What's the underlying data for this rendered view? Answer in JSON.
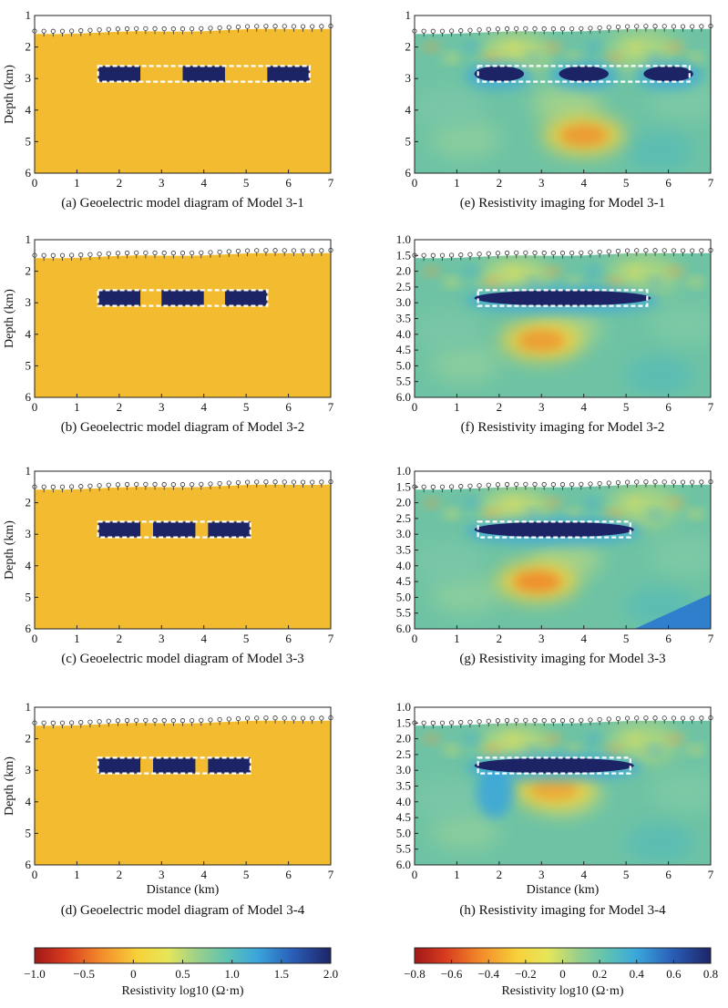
{
  "chart_data": [
    {
      "type": "heatmap",
      "kind": "model",
      "caption": "(a) Geoelectric model diagram of Model 3-1",
      "ylabel": "Depth (km)",
      "xlabel": "",
      "x_ticks": [
        "0",
        "1",
        "2",
        "3",
        "4",
        "5",
        "6",
        "7"
      ],
      "y_ticks": [
        "1",
        "2",
        "3",
        "4",
        "5",
        "6"
      ],
      "xlim": [
        0,
        7
      ],
      "ylim": [
        1,
        6
      ],
      "background_log10_resistivity": 0.3,
      "anomaly_log10_resistivity": 2.0,
      "blocks_km": [
        [
          1.5,
          2.5
        ],
        [
          3.5,
          4.5
        ],
        [
          5.5,
          6.5
        ]
      ],
      "anomaly_top_km": 2.6,
      "anomaly_bottom_km": 3.1,
      "outline_km": [
        1.5,
        6.5
      ]
    },
    {
      "type": "heatmap",
      "kind": "inversion",
      "caption": "(e) Resistivity imaging for Model 3-1",
      "ylabel": "",
      "xlabel": "",
      "x_ticks": [
        "0",
        "1",
        "2",
        "3",
        "4",
        "5",
        "6",
        "7"
      ],
      "y_ticks": [
        "1",
        "2",
        "3",
        "4",
        "5",
        "6"
      ],
      "xlim": [
        0,
        7
      ],
      "ylim": [
        1,
        6
      ],
      "outline_km": [
        1.5,
        6.5
      ],
      "low_zones_km": [
        [
          1.5,
          2.5
        ],
        [
          3.5,
          4.5
        ],
        [
          5.5,
          6.5
        ]
      ],
      "high_zone_center_km": [
        4.0,
        4.8
      ],
      "high_zone_strength": 0.45
    },
    {
      "type": "heatmap",
      "kind": "model",
      "caption": "(b) Geoelectric model diagram of Model 3-2",
      "ylabel": "Depth (km)",
      "xlabel": "",
      "x_ticks": [
        "0",
        "1",
        "2",
        "3",
        "4",
        "5",
        "6",
        "7"
      ],
      "y_ticks": [
        "1",
        "2",
        "3",
        "4",
        "5",
        "6"
      ],
      "xlim": [
        0,
        7
      ],
      "ylim": [
        1,
        6
      ],
      "background_log10_resistivity": 0.3,
      "anomaly_log10_resistivity": 2.0,
      "blocks_km": [
        [
          1.5,
          2.5
        ],
        [
          3.0,
          4.0
        ],
        [
          4.5,
          5.5
        ]
      ],
      "anomaly_top_km": 2.6,
      "anomaly_bottom_km": 3.1,
      "outline_km": [
        1.5,
        5.5
      ]
    },
    {
      "type": "heatmap",
      "kind": "inversion",
      "caption": "(f) Resistivity imaging for Model 3-2",
      "ylabel": "",
      "xlabel": "",
      "x_ticks": [
        "0",
        "1",
        "2",
        "3",
        "4",
        "5",
        "6",
        "7"
      ],
      "y_ticks": [
        "1.0",
        "1.5",
        "2.0",
        "2.5",
        "3.0",
        "3.5",
        "4.0",
        "4.5",
        "5.0",
        "5.5",
        "6.0"
      ],
      "xlim": [
        0,
        7
      ],
      "ylim": [
        1,
        6
      ],
      "outline_km": [
        1.5,
        5.5
      ],
      "low_zones_km": [
        [
          1.5,
          5.5
        ]
      ],
      "high_zone_center_km": [
        3.0,
        4.2
      ],
      "high_zone_strength": 0.4
    },
    {
      "type": "heatmap",
      "kind": "model",
      "caption": "(c) Geoelectric model diagram of Model 3-3",
      "ylabel": "Depth (km)",
      "xlabel": "",
      "x_ticks": [
        "0",
        "1",
        "2",
        "3",
        "4",
        "5",
        "6",
        "7"
      ],
      "y_ticks": [
        "1",
        "2",
        "3",
        "4",
        "5",
        "6"
      ],
      "xlim": [
        0,
        7
      ],
      "ylim": [
        1,
        6
      ],
      "background_log10_resistivity": 0.3,
      "anomaly_log10_resistivity": 2.0,
      "blocks_km": [
        [
          1.5,
          2.5
        ],
        [
          2.8,
          3.8
        ],
        [
          4.1,
          5.1
        ]
      ],
      "anomaly_top_km": 2.6,
      "anomaly_bottom_km": 3.1,
      "outline_km": [
        1.5,
        5.1
      ]
    },
    {
      "type": "heatmap",
      "kind": "inversion",
      "caption": "(g) Resistivity imaging for Model 3-3",
      "ylabel": "",
      "xlabel": "",
      "x_ticks": [
        "0",
        "1",
        "2",
        "3",
        "4",
        "5",
        "6",
        "7"
      ],
      "y_ticks": [
        "1.0",
        "1.5",
        "2.0",
        "2.5",
        "3.0",
        "3.5",
        "4.0",
        "4.5",
        "5.0",
        "5.5",
        "6.0"
      ],
      "xlim": [
        0,
        7
      ],
      "ylim": [
        1,
        6
      ],
      "outline_km": [
        1.5,
        5.1
      ],
      "low_zones_km": [
        [
          1.5,
          5.1
        ]
      ],
      "high_zone_center_km": [
        2.9,
        4.5
      ],
      "high_zone_strength": 0.6
    },
    {
      "type": "heatmap",
      "kind": "model",
      "caption": "(d) Geoelectric model diagram of Model 3-4",
      "ylabel": "Depth (km)",
      "xlabel": "Distance (km)",
      "x_ticks": [
        "0",
        "1",
        "2",
        "3",
        "4",
        "5",
        "6",
        "7"
      ],
      "y_ticks": [
        "1",
        "2",
        "3",
        "4",
        "5",
        "6"
      ],
      "xlim": [
        0,
        7
      ],
      "ylim": [
        1,
        6
      ],
      "background_log10_resistivity": 0.3,
      "anomaly_log10_resistivity": 2.0,
      "blocks_km": [
        [
          1.5,
          2.5
        ],
        [
          2.8,
          3.8
        ],
        [
          4.1,
          5.1
        ]
      ],
      "anomaly_top_km": 2.6,
      "anomaly_bottom_km": 3.1,
      "outline_km": [
        1.5,
        5.1
      ]
    },
    {
      "type": "heatmap",
      "kind": "inversion",
      "caption": "(h) Resistivity imaging for Model 3-4",
      "ylabel": "",
      "xlabel": "Distance (km)",
      "x_ticks": [
        "0",
        "1",
        "2",
        "3",
        "4",
        "5",
        "6",
        "7"
      ],
      "y_ticks": [
        "1.0",
        "1.5",
        "2.0",
        "2.5",
        "3.0",
        "3.5",
        "4.0",
        "4.5",
        "5.0",
        "5.5",
        "6.0"
      ],
      "xlim": [
        0,
        7
      ],
      "ylim": [
        1,
        6
      ],
      "outline_km": [
        1.5,
        5.1
      ],
      "low_zones_km": [
        [
          1.5,
          5.1
        ]
      ],
      "high_zone_center_km": [
        3.3,
        3.6
      ],
      "high_zone_strength": 0.25
    }
  ],
  "colorbars": [
    {
      "label": "Resistivity log10 (Ω·m)",
      "range": [
        -1.0,
        2.0
      ],
      "ticks": [
        "−1.0",
        "−0.5",
        "0",
        "0.5",
        "1.0",
        "1.5",
        "2.0"
      ]
    },
    {
      "label": "Resistivity log10 (Ω·m)",
      "range": [
        -0.8,
        0.8
      ],
      "ticks": [
        "−0.8",
        "−0.6",
        "−0.4",
        "−0.2",
        "0",
        "0.2",
        "0.4",
        "0.6",
        "0.8"
      ]
    }
  ],
  "colors": {
    "model_background": "#f3bc30",
    "anomaly": "#1d2466",
    "outline": "#ffffff",
    "inversion_background": "#6fc3a4"
  }
}
